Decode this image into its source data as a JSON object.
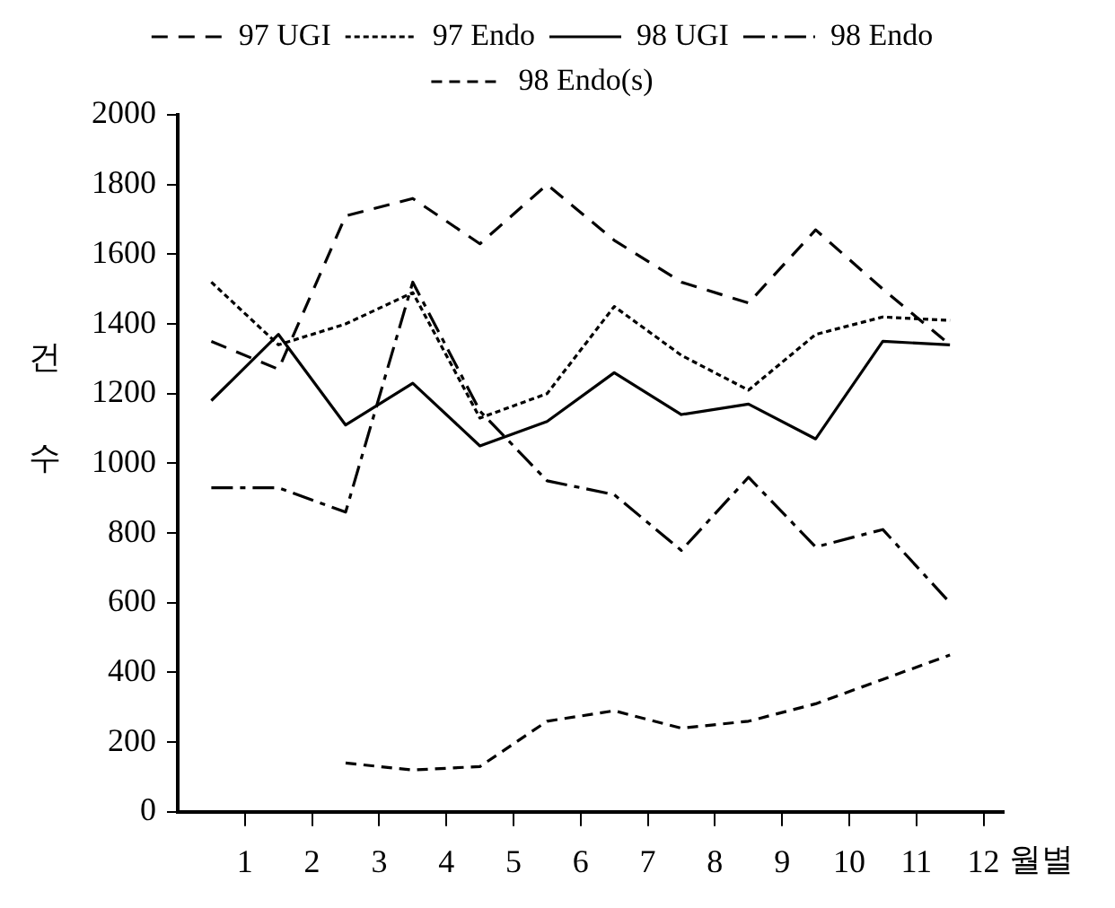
{
  "chart_data": {
    "type": "line",
    "xlabel": "월별",
    "ylabel": "건 수",
    "x": [
      0.5,
      1.5,
      2.5,
      3.5,
      4.5,
      5.5,
      6.5,
      7.5,
      8.5,
      9.5,
      10.5,
      11.5
    ],
    "xlim": [
      0,
      12.3
    ],
    "xticks": [
      1,
      2,
      3,
      4,
      5,
      6,
      7,
      8,
      9,
      10,
      11,
      12
    ],
    "ylim": [
      0,
      2000
    ],
    "yticks": [
      0,
      200,
      400,
      600,
      800,
      1000,
      1200,
      1400,
      1600,
      1800,
      2000
    ],
    "legend": "top",
    "grid": false,
    "marker": "none",
    "series": [
      {
        "name": "97 UGI",
        "color": "#000000",
        "line_style": "dashed",
        "values": [
          1350,
          1270,
          1710,
          1760,
          1630,
          1800,
          1640,
          1520,
          1460,
          1670,
          1500,
          1340
        ]
      },
      {
        "name": "97 Endo",
        "color": "#000000",
        "line_style": "dotted",
        "values": [
          1520,
          1340,
          1400,
          1490,
          1130,
          1200,
          1450,
          1310,
          1210,
          1370,
          1420,
          1410
        ]
      },
      {
        "name": "98 UGI",
        "color": "#000000",
        "line_style": "solid",
        "values": [
          1180,
          1370,
          1110,
          1230,
          1050,
          1120,
          1260,
          1140,
          1170,
          1070,
          1350,
          1340
        ]
      },
      {
        "name": "98 Endo",
        "color": "#000000",
        "line_style": "dashed",
        "values": [
          930,
          930,
          860,
          1520,
          1150,
          950,
          910,
          750,
          960,
          760,
          810,
          600
        ]
      },
      {
        "name": "98 Endo(s)",
        "color": "#000000",
        "line_style": "dashed",
        "values": [
          null,
          null,
          140,
          120,
          130,
          260,
          290,
          240,
          260,
          310,
          380,
          450
        ]
      }
    ]
  }
}
